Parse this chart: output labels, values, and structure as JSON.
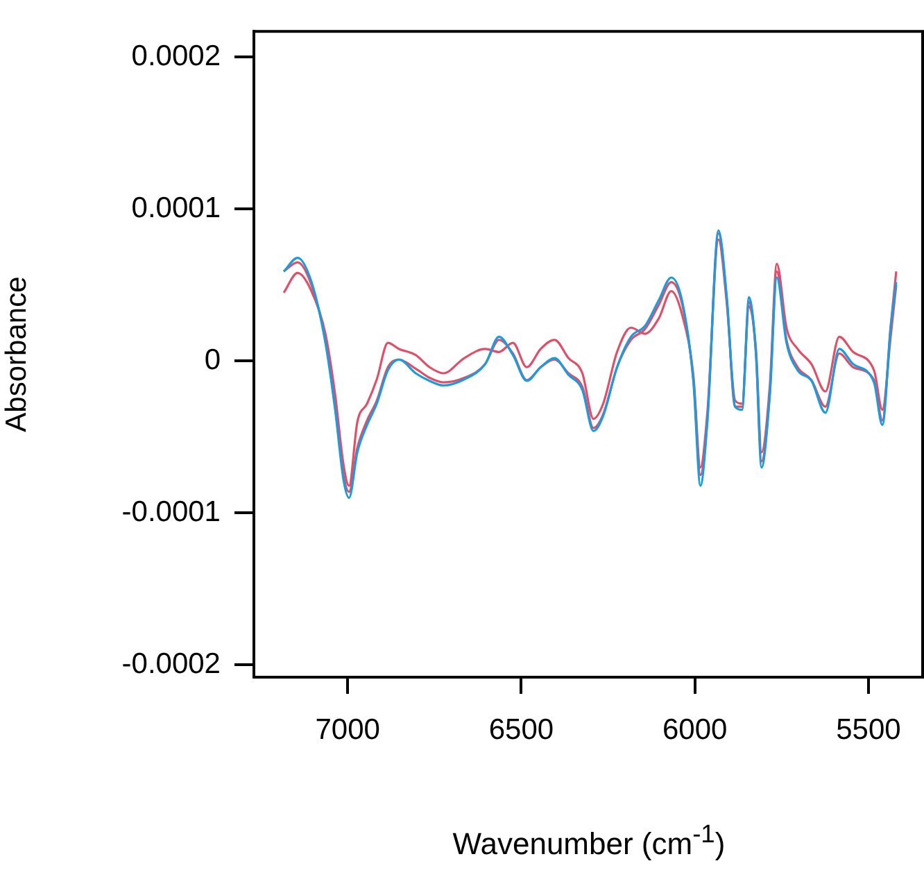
{
  "chart_data": {
    "type": "line",
    "xlabel": "Wavenumber (cm$^{-1}$)",
    "ylabel": "Absorbance",
    "x": [
      7184,
      7144,
      7104,
      7064,
      7036,
      7012,
      6996,
      6972,
      6944,
      6916,
      6884,
      6852,
      6804,
      6764,
      6724,
      6664,
      6604,
      6564,
      6524,
      6484,
      6444,
      6404,
      6364,
      6324,
      6292,
      6264,
      6224,
      6184,
      6144,
      6104,
      6068,
      6036,
      6004,
      5984,
      5964,
      5932,
      5908,
      5884,
      5864,
      5844,
      5824,
      5808,
      5784,
      5764,
      5736,
      5704,
      5664,
      5624,
      5584,
      5544,
      5484,
      5460,
      5436,
      5420
    ],
    "series": [
      {
        "color": "#1a9de0",
        "values": [
          5.9e-05,
          6.8e-05,
          5.2e-05,
          1.2e-05,
          -3.2e-05,
          -7.8e-05,
          -9e-05,
          -6e-05,
          -4.2e-05,
          -2.8e-05,
          -6e-06,
          1e-06,
          -8e-06,
          -1.3e-05,
          -1.6e-05,
          -1.2e-05,
          -2e-06,
          1.6e-05,
          4e-06,
          -1.3e-05,
          -4e-06,
          2e-06,
          -9e-06,
          -1.9e-05,
          -4.6e-05,
          -3.6e-05,
          -4e-06,
          1.6e-05,
          2.3e-05,
          4e-05,
          5.5e-05,
          3.9e-05,
          -1.4e-05,
          -8.2e-05,
          -4e-05,
          8.6e-05,
          4.2e-05,
          -3e-05,
          -3.2e-05,
          4.2e-05,
          5e-06,
          -7e-05,
          -2.2e-05,
          5.5e-05,
          1.2e-05,
          -6e-06,
          -1.3e-05,
          -3.4e-05,
          8e-06,
          -2e-06,
          -1.4e-05,
          -4.2e-05,
          2.2e-05,
          5.2e-05
        ]
      },
      {
        "color": "#df5068",
        "values": [
          5.9e-05,
          6.5e-05,
          5e-05,
          1.4e-05,
          -3e-05,
          -7.5e-05,
          -8.6e-05,
          -5.7e-05,
          -3.9e-05,
          -2.6e-05,
          -4e-06,
          1e-06,
          -5e-06,
          -1.1e-05,
          -1.4e-05,
          -1.1e-05,
          -2e-06,
          1.4e-05,
          5e-06,
          -1.25e-05,
          -4e-06,
          1e-06,
          -8e-06,
          -1.7e-05,
          -4.4e-05,
          -3.5e-05,
          -4e-06,
          1.4e-05,
          2.1e-05,
          3.7e-05,
          5.2e-05,
          3.7e-05,
          -1.25e-05,
          -7.5e-05,
          -3.9e-05,
          8.4e-05,
          4.1e-05,
          -3e-05,
          -3e-05,
          3.9e-05,
          5e-06,
          -6.6e-05,
          -2.1e-05,
          5.9e-05,
          1.4e-05,
          -4e-06,
          -1.25e-05,
          -3e-05,
          5e-06,
          -4e-06,
          -1.25e-05,
          -3.9e-05,
          2.3e-05,
          5.9e-05
        ]
      },
      {
        "color": "#df5068",
        "values": [
          4.5e-05,
          5.8e-05,
          4.6e-05,
          1.8e-05,
          -2.2e-05,
          -6.8e-05,
          -8.2e-05,
          -4e-05,
          -2.8e-05,
          -1.2e-05,
          1.2e-05,
          8e-06,
          4e-06,
          -4e-06,
          -8e-06,
          2e-06,
          8e-06,
          6e-06,
          1.2e-05,
          -4e-06,
          8e-06,
          1.4e-05,
          2e-06,
          -8e-06,
          -3.8e-05,
          -2.8e-05,
          6e-06,
          2.2e-05,
          1.8e-05,
          2.8e-05,
          4.6e-05,
          3e-05,
          -1e-05,
          -7e-05,
          -3.4e-05,
          8e-05,
          3.8e-05,
          -2.6e-05,
          -2.8e-05,
          3.6e-05,
          8e-06,
          -6e-05,
          -1.6e-05,
          6.4e-05,
          2.2e-05,
          8e-06,
          -2e-06,
          -2e-05,
          1.6e-05,
          6e-06,
          -6e-06,
          -3.2e-05,
          1.6e-05,
          5e-05
        ]
      }
    ],
    "xlim": [
      7270,
      5340
    ],
    "xticks": [
      7000,
      6500,
      6000,
      5500
    ],
    "ylim": [
      -0.000208,
      0.000217
    ],
    "yticks": [
      -0.0002,
      -0.0001,
      0,
      0.0001,
      0.0002
    ],
    "marker": "none",
    "line_style": "solid"
  }
}
